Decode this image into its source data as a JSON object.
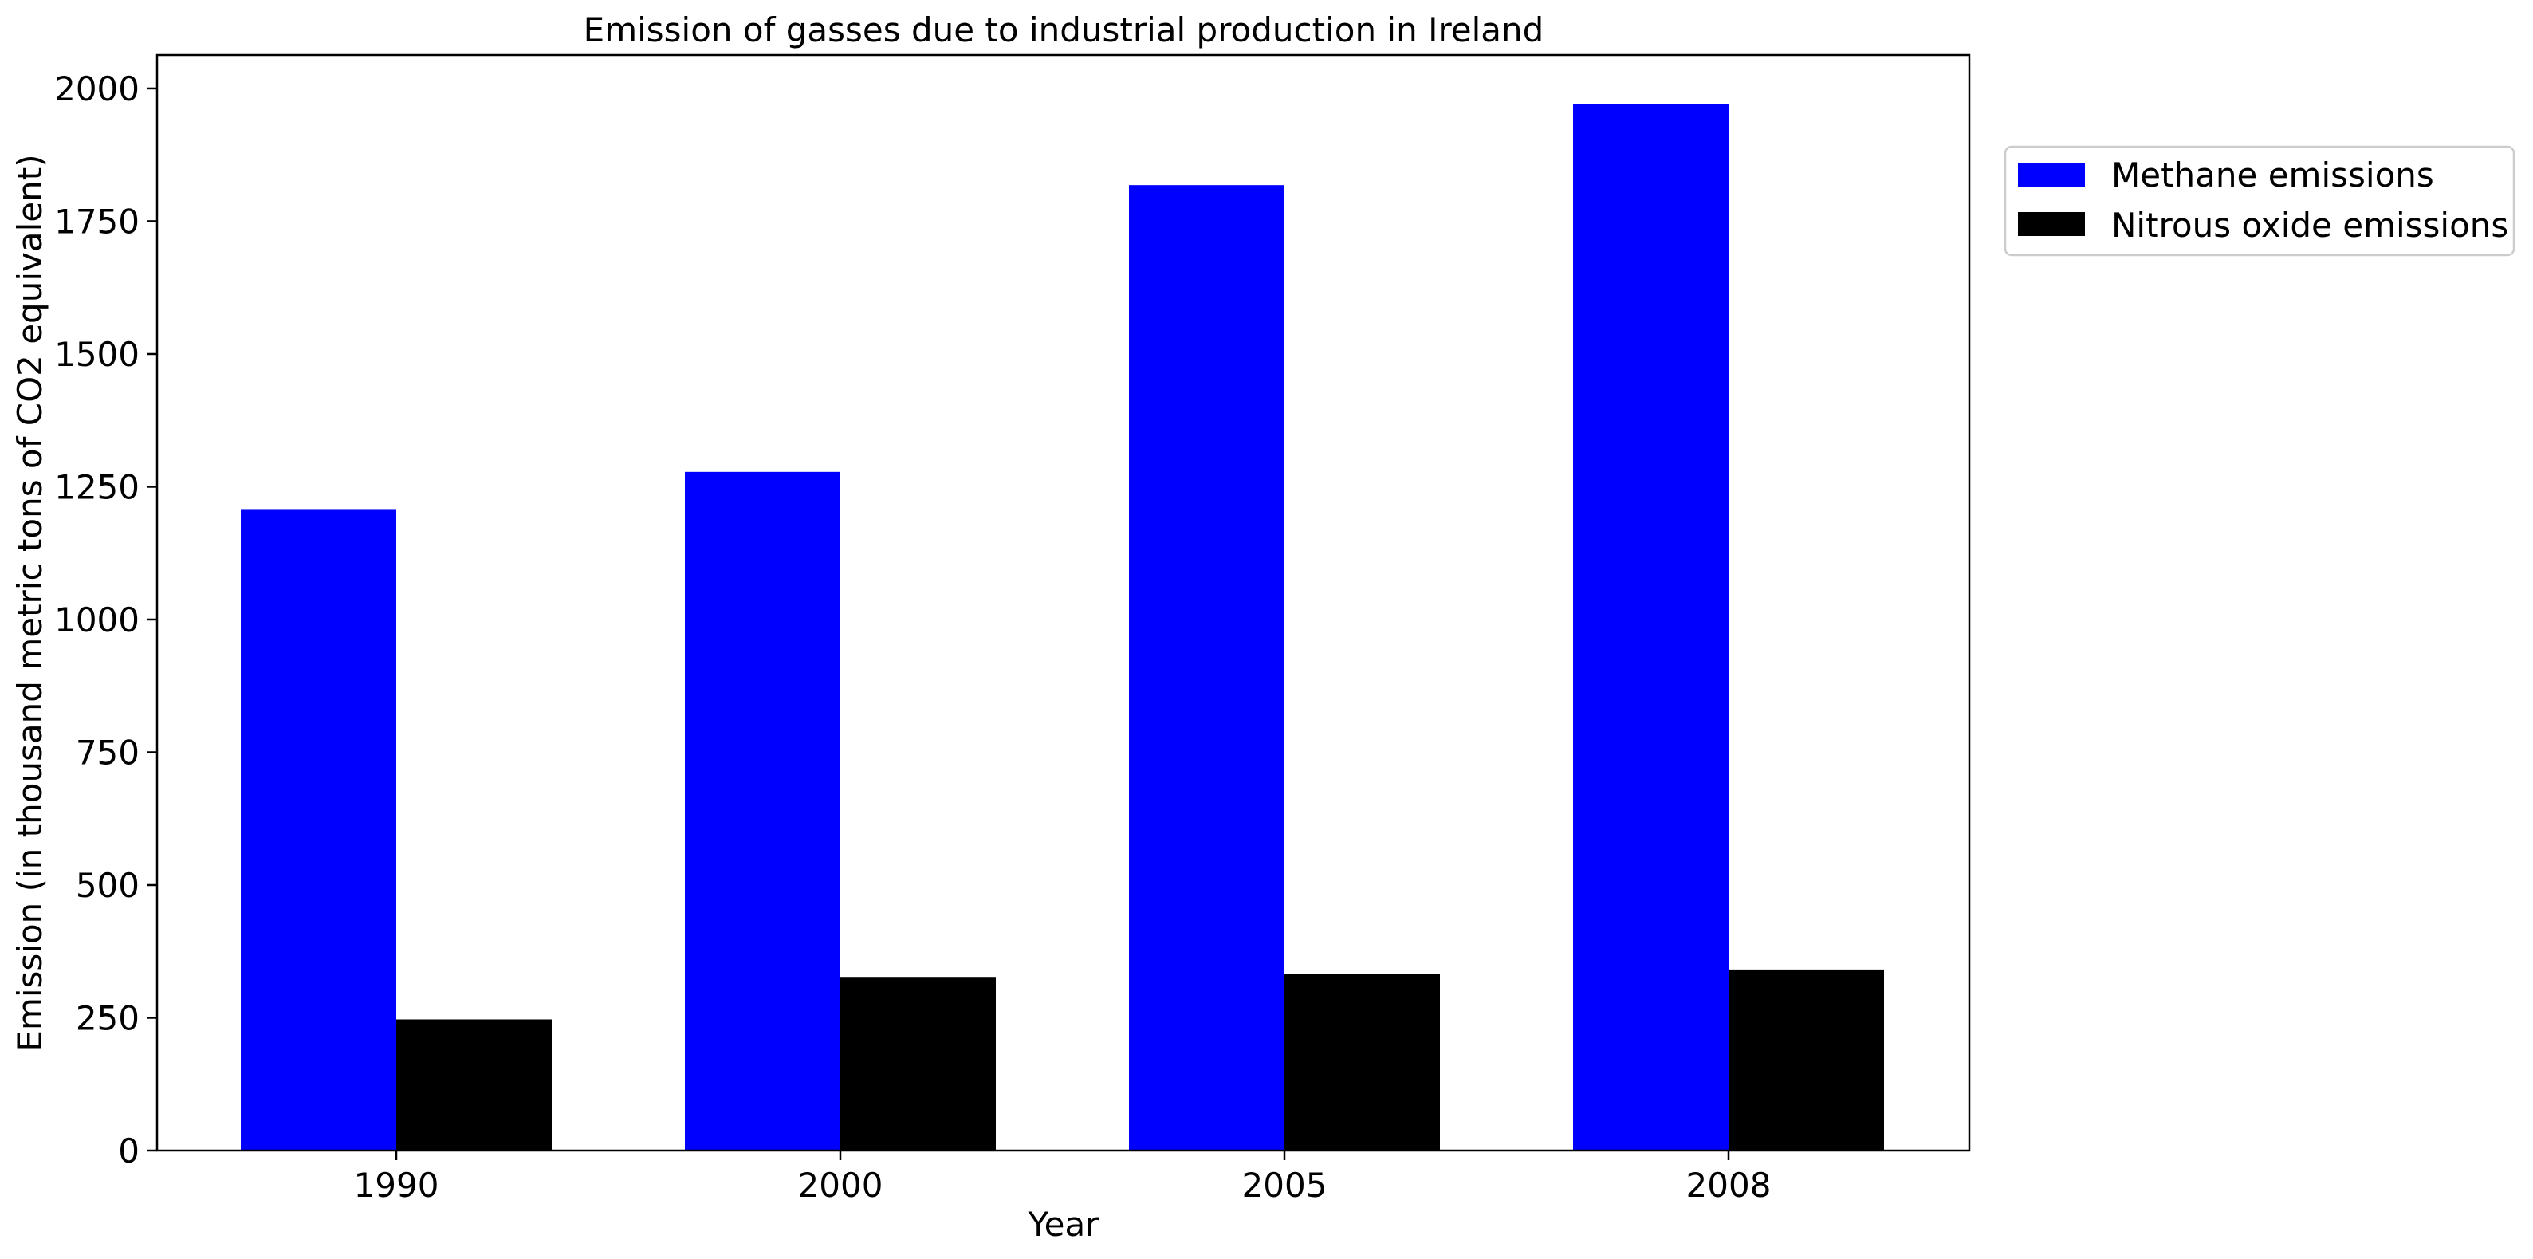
{
  "chart_data": {
    "type": "bar",
    "title": "Emission of gasses due to industrial production in Ireland",
    "xlabel": "Year",
    "ylabel": "Emission (in thousand metric tons of CO2 equivalent)",
    "categories": [
      "1990",
      "2000",
      "2005",
      "2008"
    ],
    "series": [
      {
        "name": "Methane emissions",
        "color": "#0000ff",
        "values": [
          1208,
          1278,
          1818,
          1970
        ]
      },
      {
        "name": "Nitrous oxide emissions",
        "color": "#000000",
        "values": [
          247,
          327,
          332,
          341
        ]
      }
    ],
    "ylim": [
      0,
      2063
    ],
    "yticks": [
      "0",
      "250",
      "500",
      "750",
      "1000",
      "1250",
      "1500",
      "1750",
      "2000"
    ],
    "grid": false,
    "legend_position": "upper right, outside plot area"
  }
}
